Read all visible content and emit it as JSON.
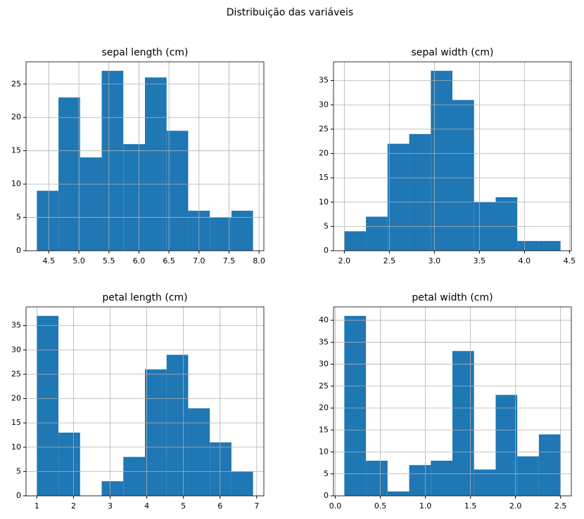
{
  "title": "Distribuição das variáveis",
  "chart_data": [
    {
      "type": "histogram",
      "title": "sepal length (cm)",
      "color": "#1f77b4",
      "grid": true,
      "bins": [
        4.3,
        4.66,
        5.02,
        5.38,
        5.74,
        6.1,
        6.46,
        6.82,
        7.18,
        7.54,
        7.9
      ],
      "values": [
        9,
        23,
        14,
        27,
        16,
        26,
        18,
        6,
        5,
        6
      ],
      "xlim": [
        4.12,
        8.08
      ],
      "xticks": [
        4.5,
        {
          "value": 5,
          "label": "5.0"
        },
        5.5,
        {
          "value": 6,
          "label": "6.0"
        },
        6.5,
        {
          "value": 7,
          "label": "7.0"
        },
        7.5,
        {
          "value": 8,
          "label": "8.0"
        }
      ],
      "ylim": [
        0,
        28.35
      ],
      "yticks": [
        0,
        5,
        10,
        15,
        20,
        25
      ]
    },
    {
      "type": "histogram",
      "title": "sepal width (cm)",
      "color": "#1f77b4",
      "grid": true,
      "bins": [
        2.0,
        2.24,
        2.48,
        2.72,
        2.96,
        3.2,
        3.44,
        3.68,
        3.92,
        4.16,
        4.4
      ],
      "values": [
        4,
        7,
        22,
        24,
        37,
        31,
        10,
        11,
        2,
        2
      ],
      "xlim": [
        1.88,
        4.52
      ],
      "xticks": [
        {
          "value": 2,
          "label": "2.0"
        },
        2.5,
        {
          "value": 3,
          "label": "3.0"
        },
        3.5,
        {
          "value": 4,
          "label": "4.0"
        },
        4.5
      ],
      "ylim": [
        0,
        38.85
      ],
      "yticks": [
        0,
        5,
        10,
        15,
        20,
        25,
        30,
        35
      ]
    },
    {
      "type": "histogram",
      "title": "petal length (cm)",
      "color": "#1f77b4",
      "grid": true,
      "bins": [
        1.0,
        1.59,
        2.18,
        2.77,
        3.36,
        3.95,
        4.54,
        5.13,
        5.72,
        6.31,
        6.9
      ],
      "values": [
        37,
        13,
        0,
        3,
        8,
        26,
        29,
        18,
        11,
        5
      ],
      "xlim": [
        0.705,
        7.195
      ],
      "xticks": [
        1,
        2,
        3,
        4,
        5,
        6,
        7
      ],
      "ylim": [
        0,
        38.85
      ],
      "yticks": [
        0,
        5,
        10,
        15,
        20,
        25,
        30,
        35
      ]
    },
    {
      "type": "histogram",
      "title": "petal width (cm)",
      "color": "#1f77b4",
      "grid": true,
      "bins": [
        0.1,
        0.34,
        0.58,
        0.82,
        1.06,
        1.3,
        1.54,
        1.78,
        2.02,
        2.26,
        2.5
      ],
      "values": [
        41,
        8,
        1,
        7,
        8,
        33,
        6,
        23,
        9,
        14
      ],
      "xlim": [
        -0.02,
        2.62
      ],
      "xticks": [
        {
          "value": 0,
          "label": "0.0"
        },
        0.5,
        {
          "value": 1,
          "label": "1.0"
        },
        1.5,
        {
          "value": 2,
          "label": "2.0"
        },
        2.5
      ],
      "ylim": [
        0,
        43.05
      ],
      "yticks": [
        0,
        5,
        10,
        15,
        20,
        25,
        30,
        35,
        40
      ]
    }
  ]
}
